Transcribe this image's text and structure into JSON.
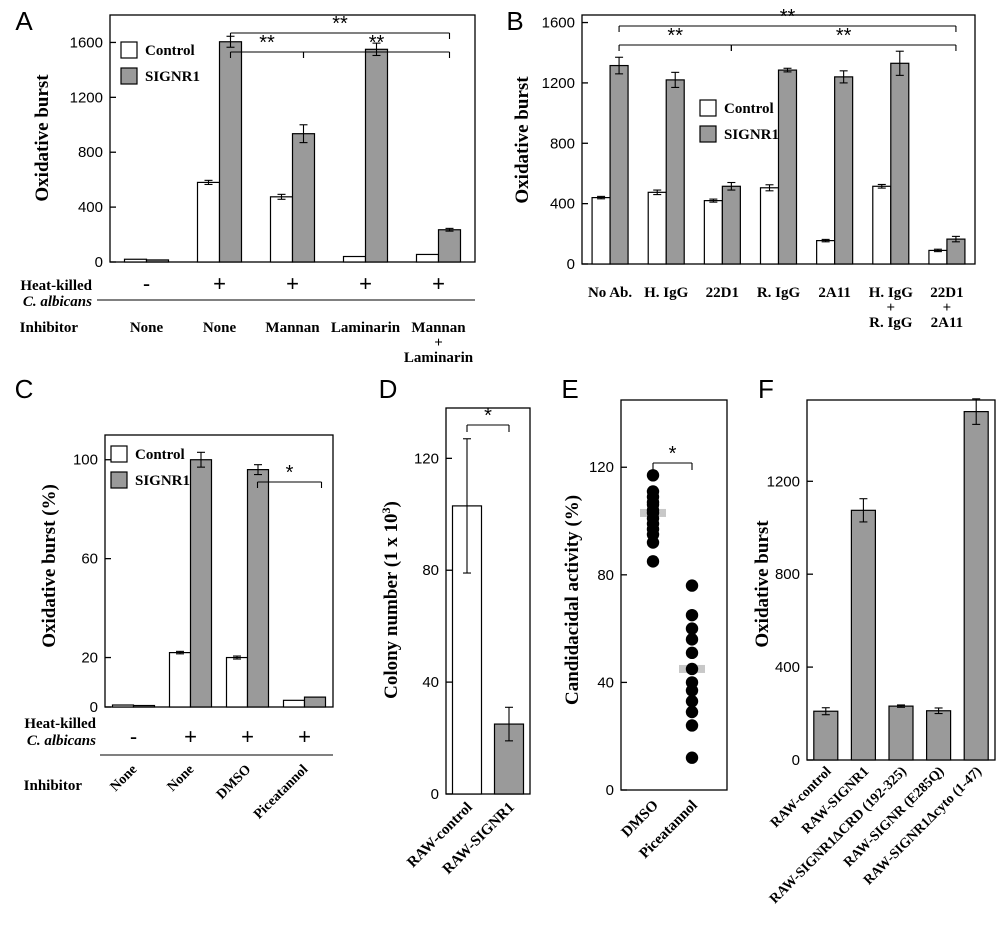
{
  "colors": {
    "control": "#ffffff",
    "signr1": "#9a9a9a",
    "mean_bar": "#c8c8c8",
    "ink": "#000000"
  },
  "shared": {
    "row_label_heat": "Heat-killed",
    "row_label_species": "C. albicans",
    "row_label_inhibitor": "Inhibitor"
  },
  "chart_data": [
    {
      "id": "A",
      "panel_label": "A",
      "type": "bar",
      "ylabel": "Oxidative burst",
      "ylim": [
        0,
        1800
      ],
      "yticks": [
        0,
        400,
        800,
        1200,
        1600
      ],
      "legend": {
        "placement": "top-left",
        "entries": [
          "Control",
          "SIGNR1"
        ]
      },
      "series": [
        {
          "name": "Control",
          "values": [
            20,
            580,
            475,
            40,
            55
          ],
          "errors": [
            0,
            15,
            18,
            0,
            0
          ]
        },
        {
          "name": "SIGNR1",
          "values": [
            15,
            1605,
            935,
            1550,
            235
          ],
          "errors": [
            0,
            40,
            65,
            45,
            10
          ]
        }
      ],
      "heat_killed": [
        "-",
        "+",
        "+",
        "+",
        "+"
      ],
      "inhibitor": [
        [
          "None"
        ],
        [
          "None"
        ],
        [
          "Mannan"
        ],
        [
          "Laminarin"
        ],
        [
          "Mannan",
          "+",
          "Laminarin"
        ]
      ],
      "significance": [
        {
          "from": 1,
          "to": 2,
          "label": "**"
        },
        {
          "from": 2,
          "to": 4,
          "label": "**"
        },
        {
          "from": 1,
          "to": 4,
          "label": "**"
        }
      ]
    },
    {
      "id": "B",
      "panel_label": "B",
      "type": "bar",
      "ylabel": "Oxidative burst",
      "ylim": [
        0,
        1650
      ],
      "yticks": [
        0,
        400,
        800,
        1200,
        1600
      ],
      "legend": {
        "placement": "center",
        "entries": [
          "Control",
          "SIGNR1"
        ]
      },
      "categories": [
        [
          "No Ab."
        ],
        [
          "H. IgG"
        ],
        [
          "22D1"
        ],
        [
          "R. IgG"
        ],
        [
          "2A11"
        ],
        [
          "H. IgG",
          "+",
          "R. IgG"
        ],
        [
          "22D1",
          "+",
          "2A11"
        ]
      ],
      "series": [
        {
          "name": "Control",
          "values": [
            440,
            475,
            420,
            505,
            155,
            515,
            90
          ],
          "errors": [
            8,
            15,
            10,
            20,
            8,
            12,
            8
          ]
        },
        {
          "name": "SIGNR1",
          "values": [
            1315,
            1220,
            515,
            1285,
            1240,
            1330,
            165
          ],
          "errors": [
            55,
            50,
            25,
            12,
            40,
            80,
            18
          ]
        }
      ],
      "significance": [
        {
          "from": 0,
          "to": 2,
          "label": "**"
        },
        {
          "from": 2,
          "to": 6,
          "label": "**"
        },
        {
          "from": 0,
          "to": 6,
          "label": "**"
        }
      ]
    },
    {
      "id": "C",
      "panel_label": "C",
      "type": "bar",
      "ylabel": "Oxidative burst  (%)",
      "ylim": [
        0,
        110
      ],
      "yticks": [
        0,
        20,
        60,
        100
      ],
      "legend": {
        "placement": "top-left",
        "entries": [
          "Control",
          "SIGNR1"
        ]
      },
      "series": [
        {
          "name": "Control",
          "values": [
            0.8,
            22,
            20,
            2.7
          ],
          "errors": [
            0,
            0.5,
            0.6,
            0
          ]
        },
        {
          "name": "SIGNR1",
          "values": [
            0.6,
            100,
            96,
            4
          ],
          "errors": [
            0,
            3,
            2,
            0
          ]
        }
      ],
      "heat_killed": [
        "-",
        "+",
        "+",
        "+"
      ],
      "inhibitor": [
        "None",
        "None",
        "DMSO",
        "Piceatannol"
      ],
      "significance": [
        {
          "from": 2,
          "to": 3,
          "label": "*"
        }
      ]
    },
    {
      "id": "D",
      "panel_label": "D",
      "type": "bar",
      "ylabel": "Colony number (1 x 10",
      "ylabel_sup": "3",
      "ylabel_end": ")",
      "ylim": [
        0,
        138
      ],
      "yticks": [
        0,
        40,
        80,
        120
      ],
      "categories": [
        "RAW-control",
        "RAW-SIGNR1"
      ],
      "values": [
        103,
        25
      ],
      "errors": [
        24,
        6
      ],
      "significance": [
        {
          "from": 0,
          "to": 1,
          "label": "*"
        }
      ]
    },
    {
      "id": "E",
      "panel_label": "E",
      "type": "scatter",
      "ylabel": "Candidacidal activity (%)",
      "ylim": [
        0,
        145
      ],
      "yticks": [
        0,
        40,
        80,
        120
      ],
      "categories": [
        "DMSO",
        "Piceatannol"
      ],
      "points": [
        [
          117,
          111,
          109,
          107,
          106,
          104,
          103,
          101,
          99,
          97,
          95,
          92,
          85
        ],
        [
          76,
          65,
          60,
          56,
          51,
          45,
          40,
          37,
          33,
          29,
          24,
          12
        ]
      ],
      "means": [
        103,
        45
      ],
      "significance": [
        {
          "from": 0,
          "to": 1,
          "label": "*"
        }
      ]
    },
    {
      "id": "F",
      "panel_label": "F",
      "type": "bar",
      "ylabel": "Oxidative burst",
      "ylim": [
        0,
        1550
      ],
      "yticks": [
        0,
        400,
        800,
        1200
      ],
      "categories": [
        "RAW-control",
        "RAW-SIGNR1",
        "RAW-SIGNR1ΔCRD (192-325)",
        "RAW-SIGNR (E285Q)",
        "RAW-SIGNR1Δcyto (1-47)"
      ],
      "values": [
        210,
        1075,
        232,
        212,
        1500
      ],
      "errors": [
        15,
        50,
        5,
        12,
        55
      ]
    }
  ]
}
